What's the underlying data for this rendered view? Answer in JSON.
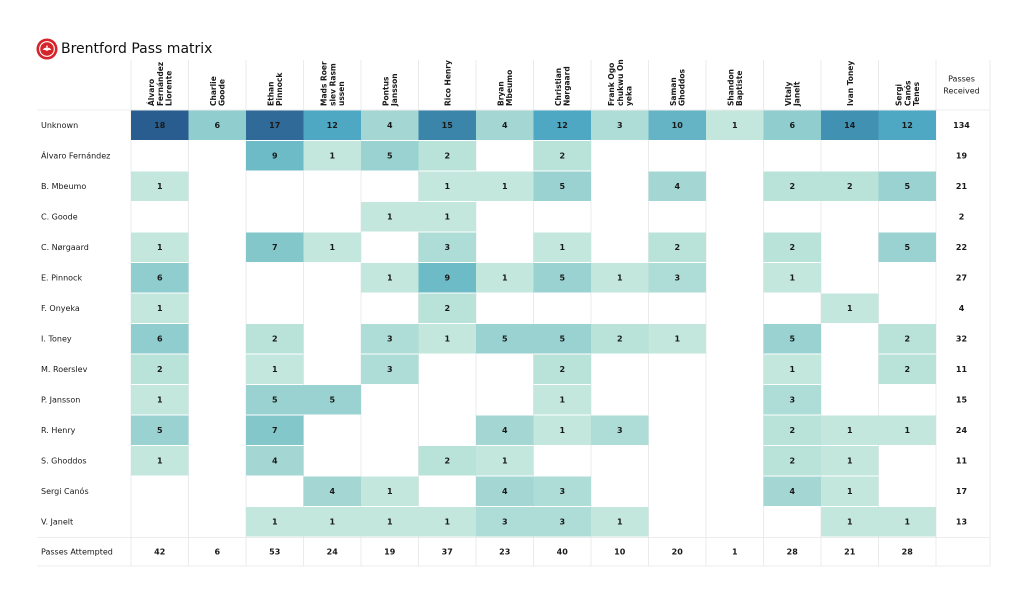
{
  "title": "Brentford Pass matrix",
  "logo": "brentford-crest-icon",
  "chart_data": {
    "type": "heatmap",
    "title": "Brentford Pass matrix",
    "columns": [
      "Álvaro\nFernández\nLlorente",
      "Charlie\nGoode",
      "Ethan\nPinnock",
      "Mads Roer\nslev Rasm\nussen",
      "Pontus\nJansson",
      "Rico Henry",
      "Bryan\nMbeumo",
      "Christian\nNørgaard",
      "Frank Ogo\nchukwu On\nyeka",
      "Saman\nGhoddos",
      "Shandon\nBaptiste",
      "Vitaly\nJanelt",
      "Ivan Toney",
      "Sergi\nCanós\nTenes"
    ],
    "total_column_label": "Passes\nReceived",
    "rows": [
      {
        "label": "Unknown",
        "values": [
          18,
          6,
          17,
          12,
          4,
          15,
          4,
          12,
          3,
          10,
          1,
          6,
          14,
          12
        ],
        "total": 134
      },
      {
        "label": "Álvaro Fernández",
        "values": [
          null,
          null,
          9,
          1,
          5,
          2,
          null,
          2,
          null,
          null,
          null,
          null,
          null,
          null
        ],
        "total": 19
      },
      {
        "label": "B. Mbeumo",
        "values": [
          1,
          null,
          null,
          null,
          null,
          1,
          1,
          5,
          null,
          4,
          null,
          2,
          2,
          5
        ],
        "total": 21
      },
      {
        "label": "C. Goode",
        "values": [
          null,
          null,
          null,
          null,
          1,
          1,
          null,
          null,
          null,
          null,
          null,
          null,
          null,
          null
        ],
        "total": 2
      },
      {
        "label": "C. Nørgaard",
        "values": [
          1,
          null,
          7,
          1,
          null,
          3,
          null,
          1,
          null,
          2,
          null,
          2,
          null,
          5
        ],
        "total": 22
      },
      {
        "label": "E. Pinnock",
        "values": [
          6,
          null,
          null,
          null,
          1,
          9,
          1,
          5,
          1,
          3,
          null,
          1,
          null,
          null
        ],
        "total": 27
      },
      {
        "label": "F. Onyeka",
        "values": [
          1,
          null,
          null,
          null,
          null,
          2,
          null,
          null,
          null,
          null,
          null,
          null,
          1,
          null
        ],
        "total": 4
      },
      {
        "label": "I. Toney",
        "values": [
          6,
          null,
          2,
          null,
          3,
          1,
          5,
          5,
          2,
          1,
          null,
          5,
          null,
          2
        ],
        "total": 32
      },
      {
        "label": "M. Roerslev",
        "values": [
          2,
          null,
          1,
          null,
          3,
          null,
          null,
          2,
          null,
          null,
          null,
          1,
          null,
          2
        ],
        "total": 11
      },
      {
        "label": "P. Jansson",
        "values": [
          1,
          null,
          5,
          5,
          null,
          null,
          null,
          1,
          null,
          null,
          null,
          3,
          null,
          null
        ],
        "total": 15
      },
      {
        "label": "R. Henry",
        "values": [
          5,
          null,
          7,
          null,
          null,
          null,
          4,
          1,
          3,
          null,
          null,
          2,
          1,
          1
        ],
        "total": 24
      },
      {
        "label": "S. Ghoddos",
        "values": [
          1,
          null,
          4,
          null,
          null,
          2,
          1,
          null,
          null,
          null,
          null,
          2,
          1,
          null
        ],
        "total": 11
      },
      {
        "label": "Sergi Canós",
        "values": [
          null,
          null,
          null,
          4,
          1,
          null,
          4,
          3,
          null,
          null,
          null,
          4,
          1,
          null
        ],
        "total": 17
      },
      {
        "label": "V. Janelt",
        "values": [
          null,
          null,
          1,
          1,
          1,
          1,
          3,
          3,
          1,
          null,
          null,
          null,
          1,
          1
        ],
        "total": 13
      }
    ],
    "attempted_row_label": "Passes Attempted",
    "attempted": [
      42,
      6,
      53,
      24,
      19,
      37,
      23,
      40,
      10,
      20,
      1,
      28,
      21,
      28
    ],
    "color_scale": [
      "#c3e7dc",
      "#88c9cc",
      "#4aa6c2",
      "#2a5d8f"
    ],
    "vmax": 18
  }
}
